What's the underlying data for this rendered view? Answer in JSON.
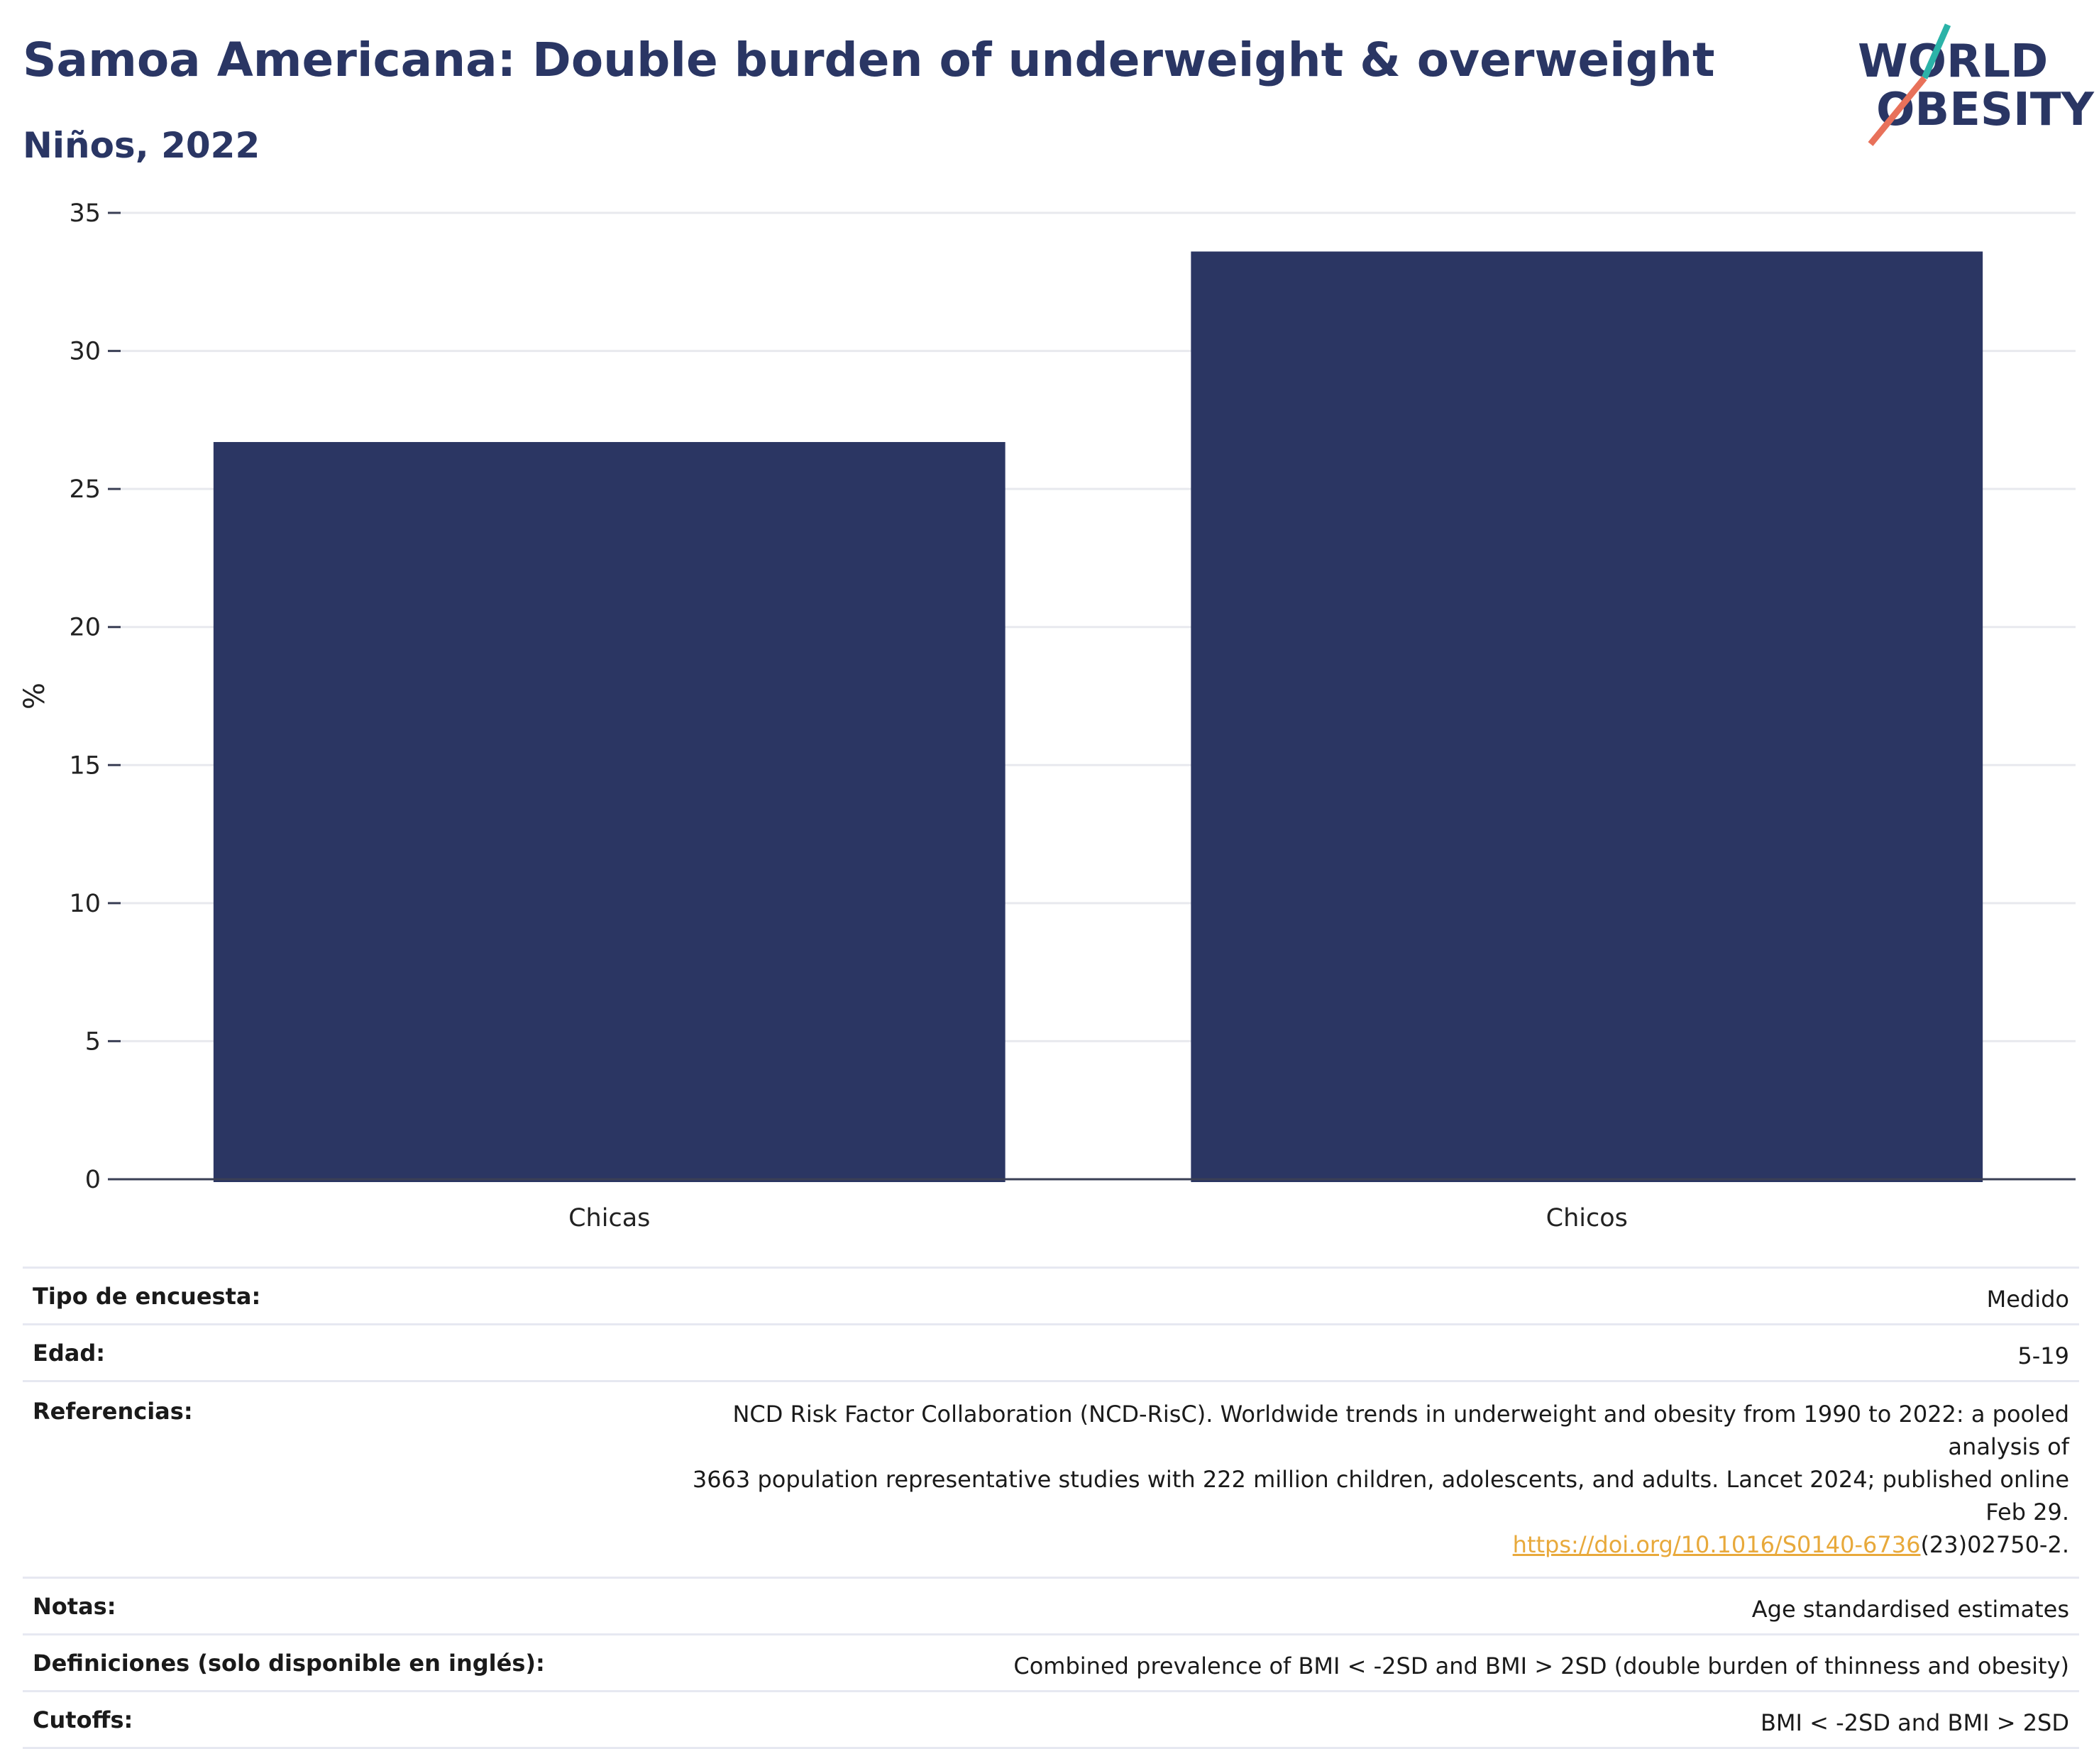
{
  "title": "Samoa Americana: Double burden of underweight & overweight",
  "subtitle": "Niños, 2022",
  "logo": {
    "line1": "WORLD",
    "line2": "OBESITY",
    "accent_teal": "#2bb3a8",
    "accent_coral": "#e8715a"
  },
  "colors": {
    "title": "#2a3664",
    "bar": "#2b3663",
    "link": "#e8a93b"
  },
  "chart_data": {
    "type": "bar",
    "categories": [
      "Chicas",
      "Chicos"
    ],
    "values": [
      26.7,
      33.6
    ],
    "ylabel": "%",
    "xlabel": "",
    "ylim": [
      0,
      35
    ],
    "yticks": [
      0,
      5,
      10,
      15,
      20,
      25,
      30,
      35
    ],
    "grid": true
  },
  "info": {
    "survey_type": {
      "label": "Tipo de encuesta:",
      "value": "Medido"
    },
    "age": {
      "label": "Edad:",
      "value": "5-19"
    },
    "references": {
      "label": "Referencias:",
      "line1": "NCD Risk Factor Collaboration (NCD-RisC). Worldwide trends in underweight and obesity from 1990 to 2022: a pooled analysis of",
      "line2": "3663 population representative studies with 222 million children, adolescents, and adults. Lancet 2024; published online Feb 29.",
      "link": "https://doi.org/10.1016/S0140-6736",
      "link_suffix": "(23)02750-2."
    },
    "notes": {
      "label": "Notas:",
      "value": "Age standardised estimates"
    },
    "definitions": {
      "label": "Definiciones (solo disponible en inglés):",
      "value": "Combined prevalence of BMI < -2SD and BMI > 2SD (double burden of thinness and obesity)"
    },
    "cutoffs": {
      "label": "Cutoffs:",
      "value": "BMI < -2SD and BMI > 2SD"
    }
  }
}
